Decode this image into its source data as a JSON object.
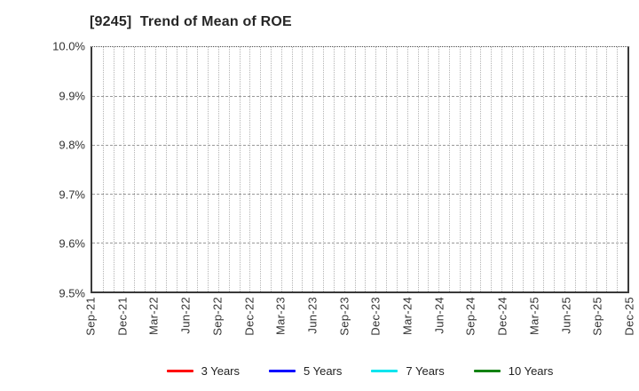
{
  "title": "[9245]  Trend of Mean of ROE",
  "chart_data": {
    "type": "line",
    "title": "[9245]  Trend of Mean of ROE",
    "plot_empty": true,
    "x_labels": [
      "Sep-21",
      "Dec-21",
      "Mar-22",
      "Jun-22",
      "Sep-22",
      "Dec-22",
      "Mar-23",
      "Jun-23",
      "Sep-23",
      "Dec-23",
      "Mar-24",
      "Jun-24",
      "Sep-24",
      "Dec-24",
      "Mar-25",
      "Jun-25",
      "Sep-25",
      "Dec-25"
    ],
    "x_minor_divisions": 51,
    "y_tick_labels": [
      "10.0%",
      "9.9%",
      "9.8%",
      "9.7%",
      "9.6%",
      "9.5%"
    ],
    "ylim": [
      9.5,
      10.0
    ],
    "y_unit": "%",
    "grid": true,
    "legend_position": "bottom",
    "series": [
      {
        "name": "3 Years",
        "color": "#ff0000",
        "values": []
      },
      {
        "name": "5 Years",
        "color": "#0000ff",
        "values": []
      },
      {
        "name": "7 Years",
        "color": "#00e5ee",
        "values": []
      },
      {
        "name": "10 Years",
        "color": "#128212",
        "values": []
      }
    ]
  }
}
